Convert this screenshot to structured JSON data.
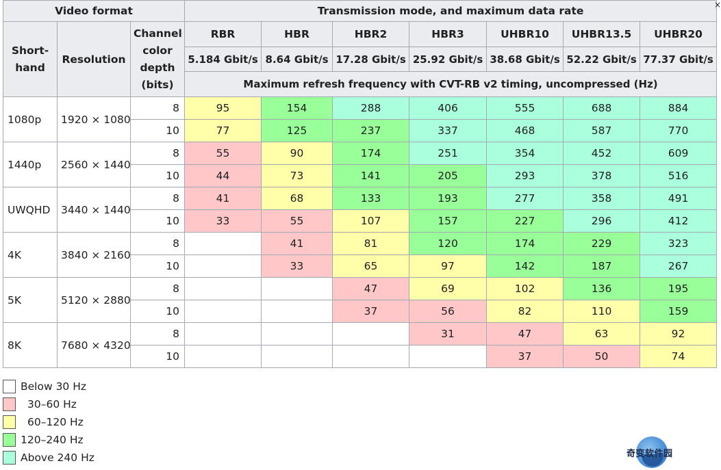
{
  "header": {
    "video_format": "Video format",
    "transmission": "Transmission mode, and maximum data rate",
    "shorthand": "Short-hand",
    "resolution": "Resolution",
    "depth": "Channel color depth (bits)",
    "max_refresh": "Maximum refresh frequency with CVT-RB v2 timing, uncompressed (Hz)"
  },
  "modes": [
    {
      "name": "RBR",
      "rate": "5.184 Gbit/s"
    },
    {
      "name": "HBR",
      "rate": "8.64 Gbit/s"
    },
    {
      "name": "HBR2",
      "rate": "17.28 Gbit/s"
    },
    {
      "name": "HBR3",
      "rate": "25.92 Gbit/s"
    },
    {
      "name": "UHBR10",
      "rate": "38.68 Gbit/s"
    },
    {
      "name": "UHBR13.5",
      "rate": "52.22 Gbit/s"
    },
    {
      "name": "UHBR20",
      "rate": "77.37 Gbit/s"
    }
  ],
  "formats": [
    {
      "shorthand": "1080p",
      "resolution": "1920 × 1080",
      "rows": [
        {
          "depth": "8",
          "values": [
            "95",
            "154",
            "288",
            "406",
            "555",
            "688",
            "884"
          ],
          "classes": [
            "c60",
            "c120",
            "c240",
            "c240",
            "c240",
            "c240",
            "c240"
          ]
        },
        {
          "depth": "10",
          "values": [
            "77",
            "125",
            "237",
            "337",
            "468",
            "587",
            "770"
          ],
          "classes": [
            "c60",
            "c120",
            "c120",
            "c240",
            "c240",
            "c240",
            "c240"
          ]
        }
      ]
    },
    {
      "shorthand": "1440p",
      "resolution": "2560 × 1440",
      "rows": [
        {
          "depth": "8",
          "values": [
            "55",
            "90",
            "174",
            "251",
            "354",
            "452",
            "609"
          ],
          "classes": [
            "c30",
            "c60",
            "c120",
            "c240",
            "c240",
            "c240",
            "c240"
          ]
        },
        {
          "depth": "10",
          "values": [
            "44",
            "73",
            "141",
            "205",
            "293",
            "378",
            "516"
          ],
          "classes": [
            "c30",
            "c60",
            "c120",
            "c120",
            "c240",
            "c240",
            "c240"
          ]
        }
      ]
    },
    {
      "shorthand": "UWQHD",
      "resolution": "3440 × 1440",
      "rows": [
        {
          "depth": "8",
          "values": [
            "41",
            "68",
            "133",
            "193",
            "277",
            "358",
            "491"
          ],
          "classes": [
            "c30",
            "c60",
            "c120",
            "c120",
            "c240",
            "c240",
            "c240"
          ]
        },
        {
          "depth": "10",
          "values": [
            "33",
            "55",
            "107",
            "157",
            "227",
            "296",
            "412"
          ],
          "classes": [
            "c30",
            "c30",
            "c60",
            "c120",
            "c120",
            "c240",
            "c240"
          ]
        }
      ]
    },
    {
      "shorthand": "4K",
      "resolution": "3840 × 2160",
      "rows": [
        {
          "depth": "8",
          "values": [
            "",
            "41",
            "81",
            "120",
            "174",
            "229",
            "323"
          ],
          "classes": [
            "below",
            "c30",
            "c60",
            "c120",
            "c120",
            "c120",
            "c240"
          ]
        },
        {
          "depth": "10",
          "values": [
            "",
            "33",
            "65",
            "97",
            "142",
            "187",
            "267"
          ],
          "classes": [
            "below",
            "c30",
            "c60",
            "c60",
            "c120",
            "c120",
            "c240"
          ]
        }
      ]
    },
    {
      "shorthand": "5K",
      "resolution": "5120 × 2880",
      "rows": [
        {
          "depth": "8",
          "values": [
            "",
            "",
            "47",
            "69",
            "102",
            "136",
            "195"
          ],
          "classes": [
            "below",
            "below",
            "c30",
            "c60",
            "c60",
            "c120",
            "c120"
          ]
        },
        {
          "depth": "10",
          "values": [
            "",
            "",
            "37",
            "56",
            "82",
            "110",
            "159"
          ],
          "classes": [
            "below",
            "below",
            "c30",
            "c30",
            "c60",
            "c60",
            "c120"
          ]
        }
      ]
    },
    {
      "shorthand": "8K",
      "resolution": "7680 × 4320",
      "rows": [
        {
          "depth": "8",
          "values": [
            "",
            "",
            "",
            "31",
            "47",
            "63",
            "92"
          ],
          "classes": [
            "below",
            "below",
            "below",
            "c30",
            "c30",
            "c60",
            "c60"
          ]
        },
        {
          "depth": "10",
          "values": [
            "",
            "",
            "",
            "",
            "37",
            "50",
            "74"
          ],
          "classes": [
            "below",
            "below",
            "below",
            "below",
            "c30",
            "c30",
            "c60"
          ]
        }
      ]
    }
  ],
  "legend": [
    {
      "key": "below",
      "label": "Below 30 Hz",
      "color": "#ffffff"
    },
    {
      "key": "c30",
      "label": "30–60 Hz",
      "color": "#ffc7c7"
    },
    {
      "key": "c60",
      "label": "60–120 Hz",
      "color": "#ffffaa"
    },
    {
      "key": "c120",
      "label": "120–240 Hz",
      "color": "#99ff99"
    },
    {
      "key": "c240",
      "label": "Above 240 Hz",
      "color": "#aaffdd"
    }
  ],
  "watermark": "奇变软件园",
  "edge_glyph": "×"
}
